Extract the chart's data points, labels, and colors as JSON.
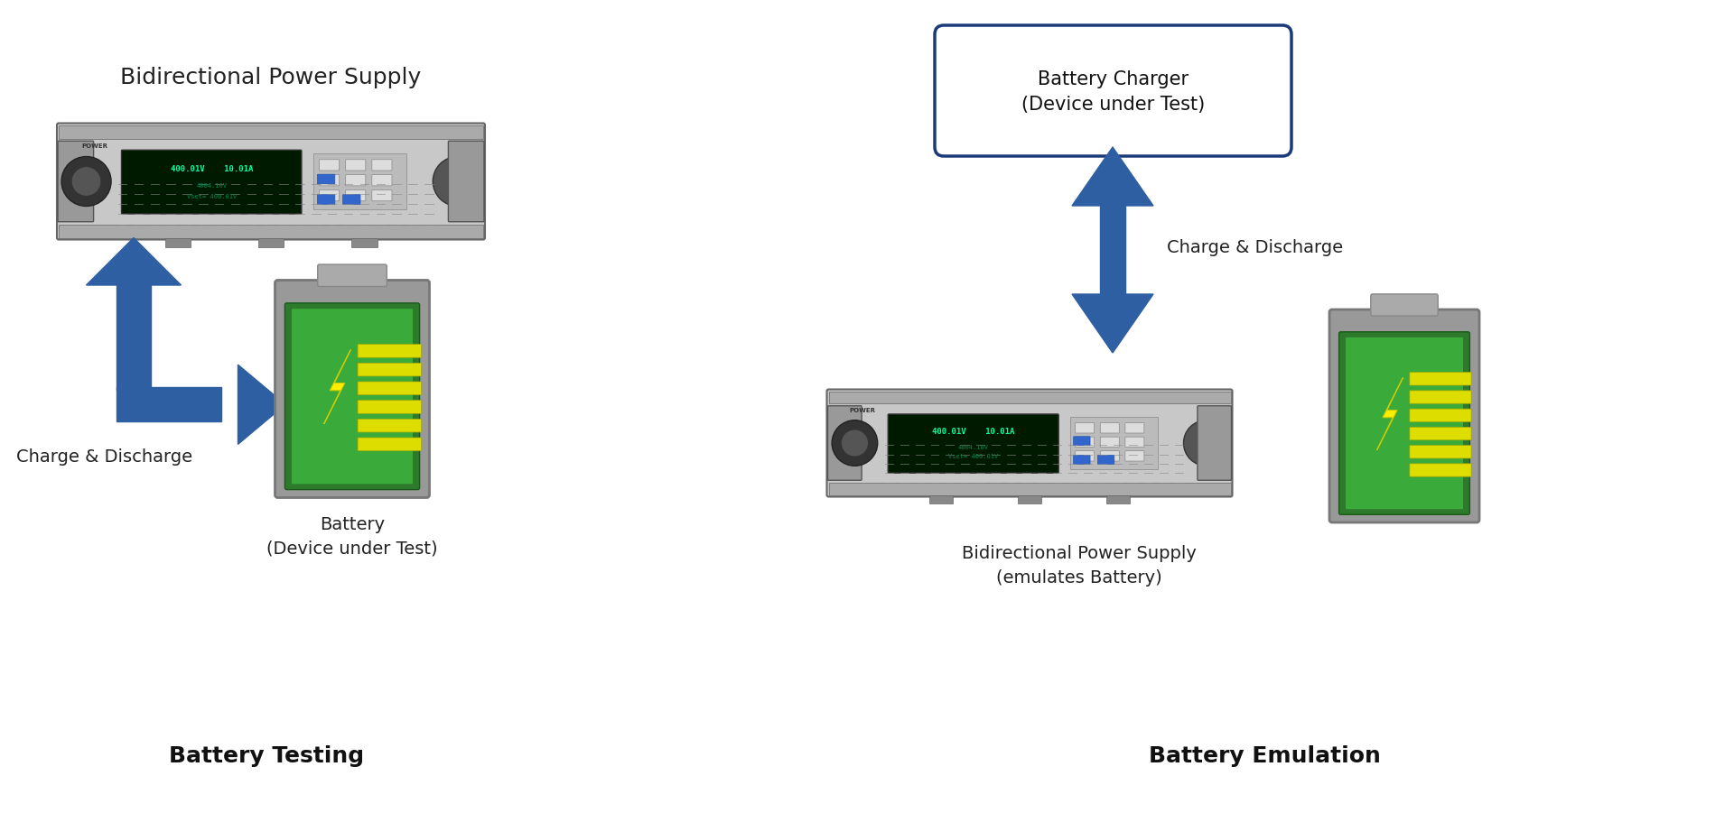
{
  "bg_color": "#ffffff",
  "title_fontsize": 18,
  "label_fontsize": 14,
  "section_title_fontsize": 18,
  "left_title": "Bidirectional Power Supply",
  "left_charge_label": "Charge & Discharge",
  "left_battery_label": "Battery\n(Device under Test)",
  "left_section_title": "Battery Testing",
  "right_box_label": "Battery Charger\n(Device under Test)",
  "right_charge_label": "Charge & Discharge",
  "right_supply_label": "Bidirectional Power Supply\n(emulates Battery)",
  "right_section_title": "Battery Emulation",
  "arrow_color": "#2E5FA3",
  "box_edge_color": "#1A3A7A",
  "box_face_color": "#ffffff",
  "psu_color_body": "#c8c8c8",
  "psu_color_screen": "#001a00",
  "battery_green_outer": "#2d7a2d",
  "battery_green_inner": "#3aaa3a",
  "battery_yellow_bar": "#dddd00",
  "battery_bolt": "#ffee00"
}
